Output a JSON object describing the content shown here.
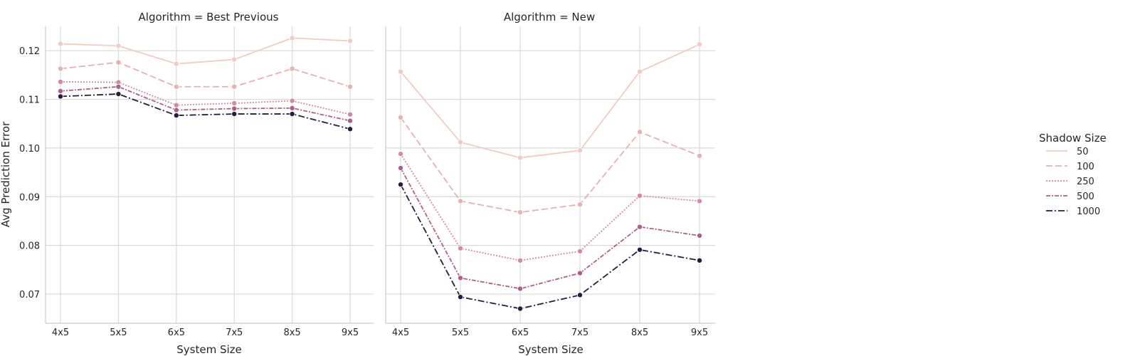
{
  "chart_data": {
    "type": "line",
    "ylabel": "Avg Prediction Error",
    "xlabel": "System Size",
    "ylim": [
      0.064,
      0.125
    ],
    "yticks": [
      0.07,
      0.08,
      0.09,
      0.1,
      0.11,
      0.12
    ],
    "ytick_labels": [
      "0.07",
      "0.08",
      "0.09",
      "0.10",
      "0.11",
      "0.12"
    ],
    "grid": true,
    "legend": {
      "title": "Shadow Size",
      "placement": "right",
      "entries": [
        "50",
        "100",
        "250",
        "500",
        "1000"
      ]
    },
    "colors": [
      "#f0cbc4",
      "#e6b1b3",
      "#d48aa4",
      "#ad5f8e",
      "#2a1a3c"
    ],
    "categories": [
      "4x5",
      "5x5",
      "6x5",
      "7x5",
      "8x5",
      "9x5"
    ],
    "panels": [
      {
        "title": "Algorithm = Best Previous",
        "series": [
          {
            "name": "50",
            "values": [
              0.1214,
              0.121,
              0.1173,
              0.1182,
              0.1226,
              0.122
            ]
          },
          {
            "name": "100",
            "values": [
              0.1163,
              0.1176,
              0.1126,
              0.1126,
              0.1163,
              0.1126
            ]
          },
          {
            "name": "250",
            "values": [
              0.1136,
              0.1135,
              0.1088,
              0.1092,
              0.1097,
              0.1069
            ]
          },
          {
            "name": "500",
            "values": [
              0.1117,
              0.1126,
              0.1078,
              0.1081,
              0.1082,
              0.1056
            ]
          },
          {
            "name": "1000",
            "values": [
              0.1106,
              0.1111,
              0.1067,
              0.107,
              0.107,
              0.1039
            ]
          }
        ]
      },
      {
        "title": "Algorithm = New",
        "series": [
          {
            "name": "50",
            "values": [
              0.1157,
              0.1012,
              0.098,
              0.0995,
              0.1157,
              0.1213
            ]
          },
          {
            "name": "100",
            "values": [
              0.1063,
              0.0891,
              0.0868,
              0.0884,
              0.1033,
              0.0984
            ]
          },
          {
            "name": "250",
            "values": [
              0.0988,
              0.0794,
              0.0769,
              0.0788,
              0.0902,
              0.0891
            ]
          },
          {
            "name": "500",
            "values": [
              0.0959,
              0.0733,
              0.0711,
              0.0743,
              0.0838,
              0.082
            ]
          },
          {
            "name": "1000",
            "values": [
              0.0925,
              0.0694,
              0.067,
              0.0698,
              0.0791,
              0.0769
            ]
          }
        ]
      }
    ]
  }
}
